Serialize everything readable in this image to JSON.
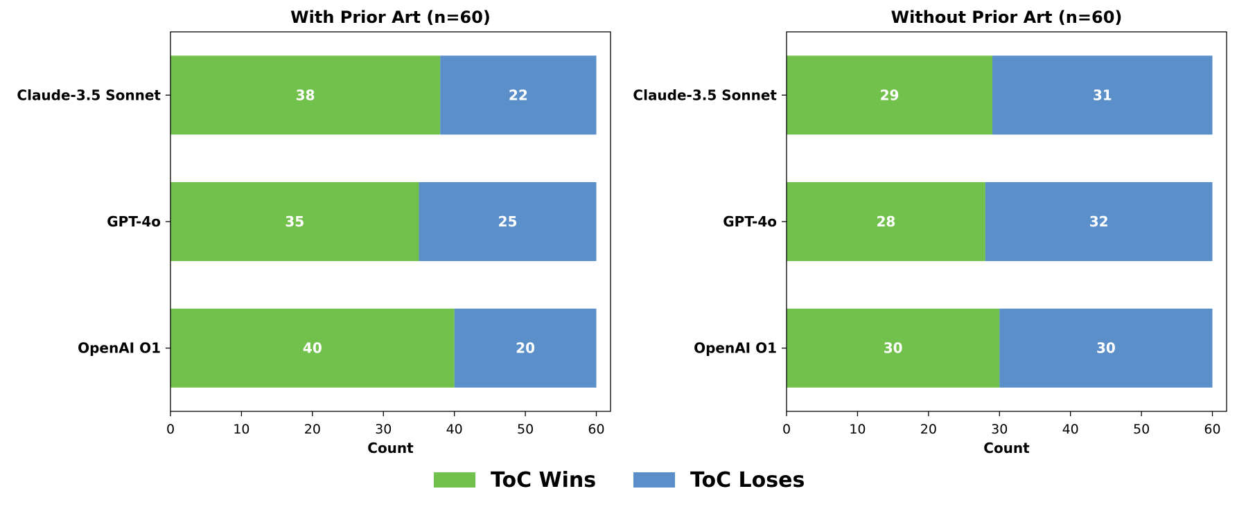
{
  "chart_data": [
    {
      "type": "bar",
      "orientation": "horizontal",
      "stacked": true,
      "title": "With Prior Art (n=60)",
      "xlabel": "Count",
      "ylabel": "",
      "xlim": [
        0,
        62
      ],
      "xticks": [
        0,
        10,
        20,
        30,
        40,
        50,
        60
      ],
      "grid": false,
      "categories": [
        "Claude-3.5 Sonnet",
        "GPT-4o",
        "OpenAI O1"
      ],
      "series": [
        {
          "name": "ToC Wins",
          "values": [
            38,
            35,
            40
          ]
        },
        {
          "name": "ToC Loses",
          "values": [
            22,
            25,
            20
          ]
        }
      ]
    },
    {
      "type": "bar",
      "orientation": "horizontal",
      "stacked": true,
      "title": "Without Prior Art (n=60)",
      "xlabel": "Count",
      "ylabel": "",
      "xlim": [
        0,
        62
      ],
      "xticks": [
        0,
        10,
        20,
        30,
        40,
        50,
        60
      ],
      "grid": false,
      "categories": [
        "Claude-3.5 Sonnet",
        "GPT-4o",
        "OpenAI O1"
      ],
      "series": [
        {
          "name": "ToC Wins",
          "values": [
            29,
            28,
            30
          ]
        },
        {
          "name": "ToC Loses",
          "values": [
            31,
            32,
            30
          ]
        }
      ]
    }
  ],
  "legend": {
    "placement": "bottom-center",
    "items": [
      {
        "label": "ToC Wins",
        "color": "#72c14c"
      },
      {
        "label": "ToC Loses",
        "color": "#5b8fc9"
      }
    ]
  }
}
